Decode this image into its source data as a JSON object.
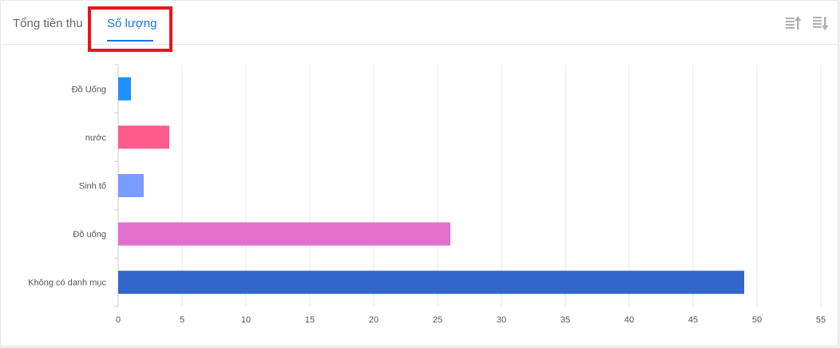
{
  "tabs": [
    {
      "label": "Tổng tiền thu",
      "active": false
    },
    {
      "label": "Số lượng",
      "active": true
    }
  ],
  "icons": {
    "sort_ascending": "sort-ascending-icon",
    "sort_descending": "sort-descending-icon"
  },
  "colors": {
    "accent": "#1a73e8",
    "highlight_box": "#e8141b"
  },
  "chart_data": {
    "type": "bar",
    "orientation": "horizontal",
    "categories": [
      "Đồ Uống",
      "nước",
      "Sinh tố",
      "Đồ uống",
      "Không có danh mục"
    ],
    "values": [
      1,
      4,
      2,
      26,
      49
    ],
    "colors": [
      "#1e90ff",
      "#ff5b8c",
      "#7b9cff",
      "#e070cc",
      "#3366cc"
    ],
    "xticks": [
      0,
      5,
      10,
      15,
      20,
      25,
      30,
      35,
      40,
      45,
      50,
      55
    ],
    "xlim": [
      0,
      55
    ],
    "grid": true,
    "legend": false
  }
}
